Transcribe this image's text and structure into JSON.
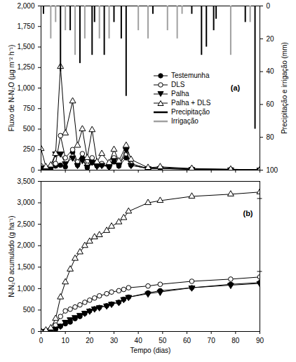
{
  "chart_data": [
    {
      "type": "line",
      "annotation": "(a)",
      "y_label": "Fluxo de N-N₂O (µg m⁻² h⁻¹)",
      "y2_label": "Precipitação e irrigação (mm)",
      "xlim": [
        0,
        90
      ],
      "xticks": [
        0,
        10,
        20,
        30,
        40,
        50,
        60,
        70,
        80,
        90
      ],
      "ylim": [
        0,
        2000
      ],
      "yticks": [
        0,
        250,
        500,
        750,
        1000,
        1250,
        1500,
        1750,
        2000
      ],
      "y2lim": [
        100,
        0
      ],
      "y2ticks": [
        0,
        20,
        40,
        60,
        80,
        100
      ],
      "tick_labels": "y",
      "legend": "right",
      "x": [
        0,
        2,
        4,
        6,
        8,
        10,
        13,
        15,
        17,
        19,
        21,
        23,
        25,
        28,
        30,
        32,
        35,
        37,
        44,
        49,
        62,
        78,
        90
      ],
      "series": [
        {
          "name": "Testemunha",
          "color": "#000000",
          "marker": "circle",
          "values": [
            20,
            10,
            20,
            50,
            60,
            40,
            220,
            60,
            150,
            30,
            90,
            60,
            60,
            40,
            100,
            50,
            150,
            60,
            20,
            20,
            10,
            5,
            3
          ]
        },
        {
          "name": "DLS",
          "color": "#000000",
          "marker": "circle_open",
          "values": [
            50,
            20,
            30,
            80,
            420,
            150,
            250,
            100,
            200,
            60,
            150,
            50,
            80,
            40,
            150,
            60,
            200,
            80,
            20,
            30,
            15,
            10,
            5
          ]
        },
        {
          "name": "Palha",
          "color": "#000000",
          "marker": "triangle_down",
          "values": [
            30,
            10,
            20,
            200,
            200,
            80,
            150,
            60,
            120,
            40,
            100,
            50,
            60,
            40,
            120,
            60,
            250,
            60,
            20,
            20,
            10,
            5,
            3
          ]
        },
        {
          "name": "Palha + DLS",
          "color": "#000000",
          "marker": "triangle_open",
          "values": [
            260,
            40,
            60,
            200,
            1260,
            450,
            840,
            300,
            500,
            150,
            490,
            100,
            200,
            90,
            250,
            110,
            300,
            130,
            30,
            40,
            20,
            10,
            5
          ]
        },
        {
          "name": "Precipitação",
          "type": "bar",
          "axis": "y2",
          "color": "#000000",
          "x": [
            1,
            8,
            12,
            16,
            21,
            22,
            26,
            30,
            33,
            35,
            46,
            62,
            66,
            68,
            71,
            72,
            84,
            88
          ],
          "values": [
            5,
            40,
            15,
            35,
            30,
            10,
            30,
            10,
            20,
            55,
            5,
            5,
            30,
            25,
            15,
            8,
            10,
            75
          ]
        },
        {
          "name": "Irrigação",
          "type": "bar",
          "axis": "y2",
          "color": "#a0a0a0",
          "x": [
            4,
            6,
            10,
            14,
            18,
            24,
            28,
            40,
            44,
            52,
            56,
            58,
            78,
            86
          ],
          "values": [
            20,
            10,
            15,
            30,
            20,
            20,
            20,
            15,
            20,
            15,
            20,
            5,
            30,
            10
          ]
        }
      ]
    },
    {
      "type": "line",
      "annotation": "(b)",
      "x_label": "Tempo (dias)",
      "y_label": "N-N₂O acumulado (g ha⁻¹)",
      "xlim": [
        0,
        90
      ],
      "xticks": [
        0,
        10,
        20,
        30,
        40,
        50,
        60,
        70,
        80,
        90
      ],
      "ylim": [
        0,
        3500
      ],
      "yticks": [
        0,
        500,
        1000,
        1500,
        2000,
        2500,
        3000,
        3500
      ],
      "x": [
        0,
        2,
        4,
        6,
        8,
        10,
        12,
        14,
        16,
        18,
        20,
        22,
        24,
        27,
        29,
        32,
        34,
        36,
        44,
        49,
        62,
        78,
        90
      ],
      "series": [
        {
          "name": "Testemunha",
          "color": "#000000",
          "marker": "circle",
          "values": [
            0,
            10,
            20,
            50,
            120,
            180,
            220,
            300,
            350,
            420,
            480,
            530,
            560,
            600,
            640,
            680,
            750,
            800,
            900,
            950,
            1020,
            1100,
            1140
          ]
        },
        {
          "name": "DLS",
          "color": "#000000",
          "marker": "circle_open",
          "values": [
            0,
            20,
            50,
            150,
            350,
            480,
            520,
            570,
            620,
            680,
            730,
            780,
            830,
            880,
            920,
            950,
            980,
            1020,
            1060,
            1100,
            1170,
            1220,
            1270
          ]
        },
        {
          "name": "Palha",
          "color": "#000000",
          "marker": "triangle_down",
          "values": [
            0,
            10,
            30,
            60,
            130,
            220,
            280,
            330,
            380,
            430,
            480,
            530,
            560,
            600,
            640,
            680,
            750,
            800,
            880,
            920,
            1020,
            1080,
            1120
          ]
        },
        {
          "name": "Palha + DLS",
          "color": "#000000",
          "marker": "triangle_open",
          "values": [
            0,
            30,
            80,
            300,
            800,
            1150,
            1450,
            1700,
            1850,
            2000,
            2100,
            2200,
            2250,
            2350,
            2450,
            2550,
            2650,
            2800,
            3000,
            3050,
            3150,
            3200,
            3250
          ]
        }
      ],
      "error_bar": {
        "x": 90,
        "low": 1400,
        "high": 3100
      }
    }
  ]
}
